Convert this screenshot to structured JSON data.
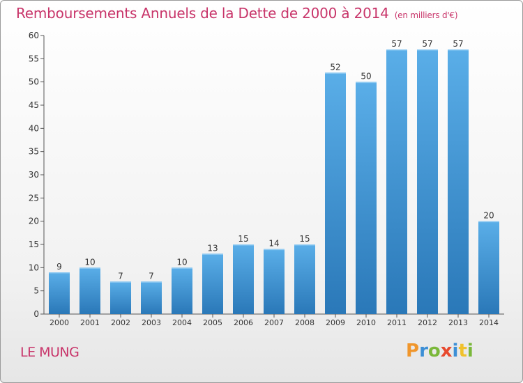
{
  "chart_data": {
    "type": "bar",
    "title": "Remboursements Annuels de la Dette de 2000 à 2014",
    "subtitle": "(en milliers d'€)",
    "categories": [
      "2000",
      "2001",
      "2002",
      "2003",
      "2004",
      "2005",
      "2006",
      "2007",
      "2008",
      "2009",
      "2010",
      "2011",
      "2012",
      "2013",
      "2014"
    ],
    "values": [
      9,
      10,
      7,
      7,
      10,
      13,
      15,
      14,
      15,
      52,
      50,
      57,
      57,
      57,
      20
    ],
    "ylim": [
      0,
      60
    ],
    "yticks": [
      0,
      5,
      10,
      15,
      20,
      25,
      30,
      35,
      40,
      45,
      50,
      55,
      60
    ],
    "xlabel": "",
    "ylabel": "",
    "grid": false,
    "bar_color_top": "#5aaee8",
    "bar_color_bottom": "#2a78b8"
  },
  "place": "LE MUNG",
  "logo": {
    "text": "Proxiti",
    "letters": [
      {
        "ch": "P",
        "color": "#f0962c"
      },
      {
        "ch": "r",
        "color": "#3c8fd6"
      },
      {
        "ch": "o",
        "color": "#7ab83a"
      },
      {
        "ch": "x",
        "color": "#e8492e"
      },
      {
        "ch": "i",
        "color": "#3c8fd6"
      },
      {
        "ch": "t",
        "color": "#f0c12c"
      },
      {
        "ch": "i",
        "color": "#7ab83a"
      }
    ]
  }
}
